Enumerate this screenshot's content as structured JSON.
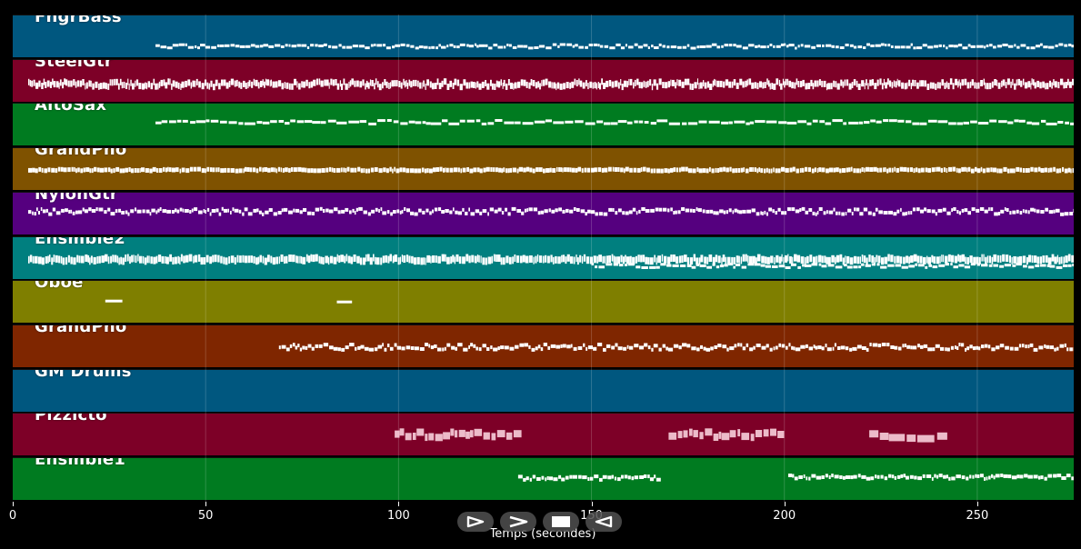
{
  "tracks": [
    {
      "label": "FngrBass",
      "color": "#00577f"
    },
    {
      "label": "SteelGtr",
      "color": "#7d0027"
    },
    {
      "label": "AltoSax",
      "color": "#007b20"
    },
    {
      "label": "GrandPno",
      "color": "#7f5200"
    },
    {
      "label": "NylonGtr",
      "color": "#55007f"
    },
    {
      "label": "Ensmble2",
      "color": "#007f7f"
    },
    {
      "label": "Oboe",
      "color": "#7f7f00"
    },
    {
      "label": "GrandPno",
      "color": "#7f2600"
    },
    {
      "label": "GM Drums",
      "color": "#00577f"
    },
    {
      "label": "Pizzicto",
      "color": "#7d0027"
    },
    {
      "label": "Ensmble1",
      "color": "#007b20"
    }
  ],
  "timeline": {
    "axis_label": "Temps (secondes)",
    "ticks": [
      "0",
      "50",
      "100",
      "150",
      "200",
      "250"
    ],
    "tick_values": [
      0,
      50,
      100,
      150,
      200,
      250
    ],
    "max_seconds": 275
  },
  "controls": {
    "play_icon": "play-outline-icon",
    "forward_icon": "forward-chevron-icon",
    "stop_icon": "stop-icon",
    "rewind_icon": "rewind-outline-icon"
  }
}
